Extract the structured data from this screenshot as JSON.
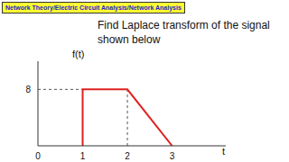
{
  "chart_data": {
    "type": "line",
    "subtitle": "Network Theory/Electric Circuit Analysis/Network Analysis",
    "title": "Find Laplace transform of the signal shown below",
    "x_label": "t",
    "y_label": "f(t)",
    "x": [
      1,
      1,
      2,
      3
    ],
    "values": [
      0,
      8,
      8,
      0
    ],
    "color": "#e02020",
    "xlim": [
      0,
      4.2
    ],
    "xticks": [
      0,
      1,
      2,
      3
    ],
    "ylim": [
      0,
      12
    ],
    "yticks": [
      8
    ],
    "line_style": "solid"
  }
}
